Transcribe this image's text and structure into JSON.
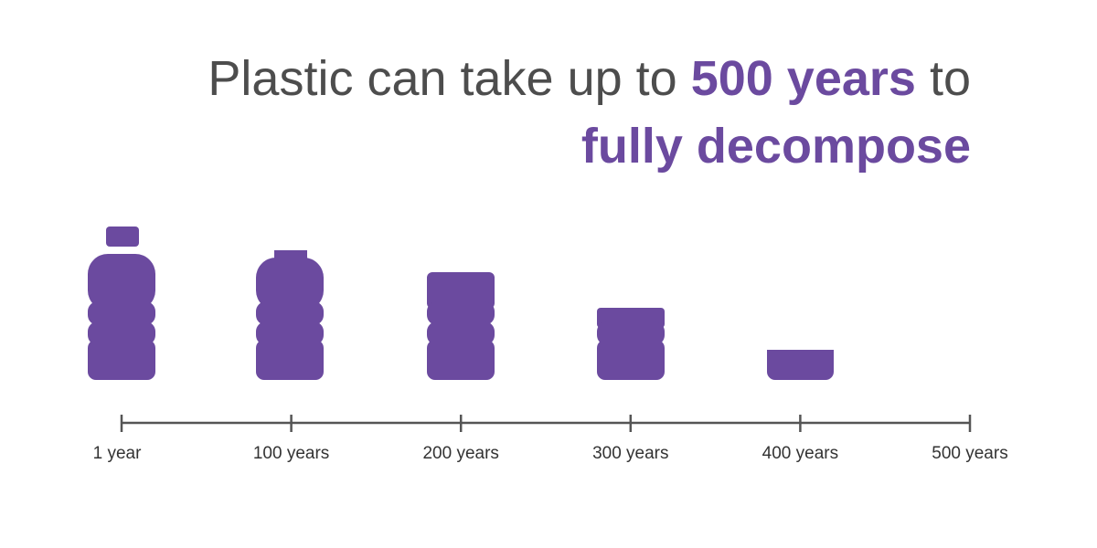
{
  "title": {
    "lead": "Plastic can take up to ",
    "highlight": "500 years",
    "tail": " to",
    "line2": "fully decompose"
  },
  "timeline": {
    "labels": [
      "1 year",
      "100 years",
      "200 years",
      "300 years",
      "400 years",
      "500 years"
    ]
  }
}
